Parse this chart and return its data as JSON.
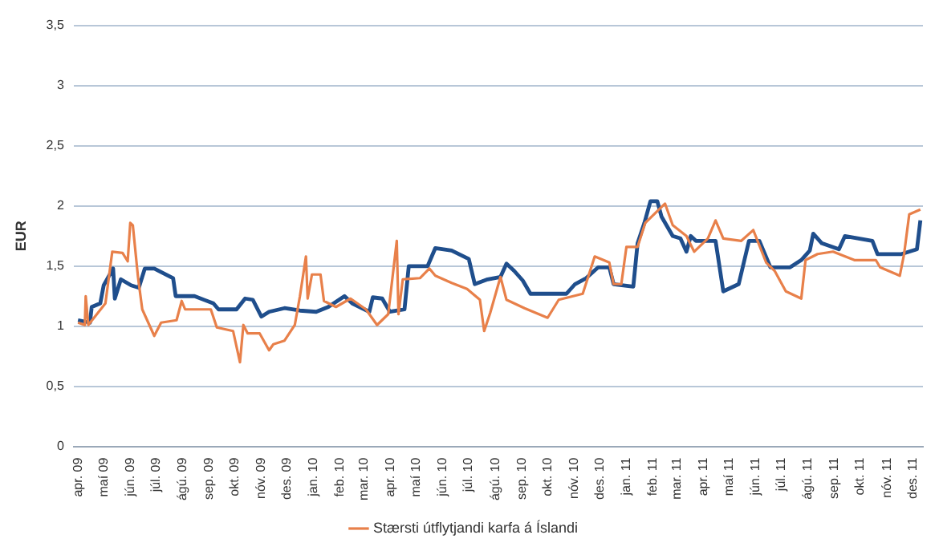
{
  "chart_data": {
    "type": "line",
    "ylabel": "EUR",
    "xlim": [
      "2009-03-27",
      "2011-12-13"
    ],
    "xticks": [
      {
        "value": "2009-04-01",
        "label": "apr. 09"
      },
      {
        "value": "2009-05-01",
        "label": "maí 09"
      },
      {
        "value": "2009-06-01",
        "label": "jún. 09"
      },
      {
        "value": "2009-07-01",
        "label": "júl. 09"
      },
      {
        "value": "2009-08-01",
        "label": "ágú. 09"
      },
      {
        "value": "2009-09-01",
        "label": "sep. 09"
      },
      {
        "value": "2009-10-01",
        "label": "okt. 09"
      },
      {
        "value": "2009-11-01",
        "label": "nóv. 09"
      },
      {
        "value": "2009-12-01",
        "label": "des. 09"
      },
      {
        "value": "2010-01-01",
        "label": "jan. 10"
      },
      {
        "value": "2010-02-01",
        "label": "feb. 10"
      },
      {
        "value": "2010-03-01",
        "label": "mar. 10"
      },
      {
        "value": "2010-04-01",
        "label": "apr. 10"
      },
      {
        "value": "2010-05-01",
        "label": "maí 10"
      },
      {
        "value": "2010-06-01",
        "label": "jún. 10"
      },
      {
        "value": "2010-07-01",
        "label": "júl. 10"
      },
      {
        "value": "2010-08-01",
        "label": "ágú. 10"
      },
      {
        "value": "2010-09-01",
        "label": "sep. 10"
      },
      {
        "value": "2010-10-01",
        "label": "okt. 10"
      },
      {
        "value": "2010-11-01",
        "label": "nóv. 10"
      },
      {
        "value": "2010-12-01",
        "label": "des. 10"
      },
      {
        "value": "2011-01-01",
        "label": "jan. 11"
      },
      {
        "value": "2011-02-01",
        "label": "feb. 11"
      },
      {
        "value": "2011-03-01",
        "label": "mar. 11"
      },
      {
        "value": "2011-04-01",
        "label": "apr. 11"
      },
      {
        "value": "2011-05-01",
        "label": "maí 11"
      },
      {
        "value": "2011-06-01",
        "label": "jún. 11"
      },
      {
        "value": "2011-07-01",
        "label": "júl. 11"
      },
      {
        "value": "2011-08-01",
        "label": "ágú. 11"
      },
      {
        "value": "2011-09-01",
        "label": "sep. 11"
      },
      {
        "value": "2011-10-01",
        "label": "okt. 11"
      },
      {
        "value": "2011-11-01",
        "label": "nóv. 11"
      },
      {
        "value": "2011-12-01",
        "label": "des. 11"
      }
    ],
    "ylim": [
      0,
      3.5
    ],
    "yticks": [
      0,
      {
        "value": 0.5,
        "label": "0,5"
      },
      1,
      {
        "value": 1.5,
        "label": "1,5"
      },
      2,
      {
        "value": 2.5,
        "label": "2,5"
      },
      3,
      {
        "value": 3.5,
        "label": "3,5"
      }
    ],
    "grid": "y",
    "legend": "bottom",
    "marker": "none",
    "line_style": "solid",
    "series": [
      {
        "color": "#1f4e8c",
        "x": [
          "2009-04-01",
          "2009-04-15",
          "2009-04-17",
          "2009-04-27",
          "2009-05-01",
          "2009-05-12",
          "2009-05-14",
          "2009-05-21",
          "2009-06-02",
          "2009-06-11",
          "2009-06-18",
          "2009-06-29",
          "2009-07-21",
          "2009-07-24",
          "2009-08-15",
          "2009-09-06",
          "2009-09-12",
          "2009-10-03",
          "2009-10-13",
          "2009-10-22",
          "2009-11-01",
          "2009-11-10",
          "2009-11-28",
          "2009-12-16",
          "2010-01-04",
          "2010-01-18",
          "2010-02-06",
          "2010-02-15",
          "2010-03-07",
          "2010-03-11",
          "2010-03-22",
          "2010-03-31",
          "2010-04-17",
          "2010-04-22",
          "2010-05-14",
          "2010-05-23",
          "2010-06-11",
          "2010-07-01",
          "2010-07-08",
          "2010-07-23",
          "2010-08-07",
          "2010-08-14",
          "2010-08-23",
          "2010-09-02",
          "2010-09-11",
          "2010-10-23",
          "2010-11-02",
          "2010-11-15",
          "2010-11-29",
          "2010-12-12",
          "2010-12-17",
          "2011-01-09",
          "2011-01-14",
          "2011-01-22",
          "2011-01-29",
          "2011-02-06",
          "2011-02-11",
          "2011-02-24",
          "2011-03-05",
          "2011-03-12",
          "2011-03-17",
          "2011-03-23",
          "2011-04-15",
          "2011-04-24",
          "2011-05-12",
          "2011-05-24",
          "2011-06-05",
          "2011-06-18",
          "2011-07-11",
          "2011-07-24",
          "2011-08-03",
          "2011-08-07",
          "2011-08-17",
          "2011-09-06",
          "2011-09-13",
          "2011-10-15",
          "2011-10-21",
          "2011-11-18",
          "2011-12-06",
          "2011-12-10"
        ],
        "values": [
          1.05,
          1.03,
          1.16,
          1.19,
          1.34,
          1.48,
          1.23,
          1.39,
          1.34,
          1.32,
          1.48,
          1.48,
          1.4,
          1.25,
          1.25,
          1.19,
          1.14,
          1.14,
          1.23,
          1.22,
          1.08,
          1.12,
          1.15,
          1.13,
          1.12,
          1.16,
          1.25,
          1.19,
          1.12,
          1.24,
          1.23,
          1.12,
          1.14,
          1.5,
          1.5,
          1.65,
          1.63,
          1.56,
          1.35,
          1.39,
          1.41,
          1.52,
          1.46,
          1.38,
          1.27,
          1.27,
          1.35,
          1.4,
          1.49,
          1.49,
          1.35,
          1.33,
          1.69,
          1.86,
          2.04,
          2.04,
          1.91,
          1.75,
          1.73,
          1.62,
          1.75,
          1.71,
          1.71,
          1.29,
          1.35,
          1.71,
          1.71,
          1.49,
          1.49,
          1.55,
          1.63,
          1.77,
          1.69,
          1.64,
          1.75,
          1.71,
          1.6,
          1.6,
          1.64,
          1.88
        ]
      },
      {
        "name": "Stærsti útflytjandi karfa á Íslandi",
        "color": "#e8804a",
        "x": [
          "2009-04-01",
          "2009-04-09",
          "2009-04-10",
          "2009-04-13",
          "2009-05-03",
          "2009-05-11",
          "2009-05-23",
          "2009-05-29",
          "2009-06-01",
          "2009-06-04",
          "2009-06-10",
          "2009-06-15",
          "2009-06-29",
          "2009-07-07",
          "2009-07-25",
          "2009-07-31",
          "2009-08-04",
          "2009-09-03",
          "2009-09-10",
          "2009-09-29",
          "2009-10-07",
          "2009-10-11",
          "2009-10-16",
          "2009-10-30",
          "2009-11-10",
          "2009-11-15",
          "2009-11-28",
          "2009-12-10",
          "2009-12-16",
          "2009-12-23",
          "2009-12-25",
          "2009-12-30",
          "2010-01-09",
          "2010-01-13",
          "2010-01-27",
          "2010-02-13",
          "2010-03-03",
          "2010-03-16",
          "2010-03-29",
          "2010-04-08",
          "2010-04-10",
          "2010-04-15",
          "2010-05-05",
          "2010-05-16",
          "2010-05-23",
          "2010-06-11",
          "2010-06-29",
          "2010-07-14",
          "2010-07-19",
          "2010-07-26",
          "2010-08-07",
          "2010-08-14",
          "2010-09-04",
          "2010-10-01",
          "2010-10-14",
          "2010-11-11",
          "2010-11-25",
          "2010-12-12",
          "2010-12-17",
          "2010-12-26",
          "2011-01-01",
          "2011-01-14",
          "2011-01-23",
          "2011-02-15",
          "2011-02-24",
          "2011-03-12",
          "2011-03-21",
          "2011-04-06",
          "2011-04-15",
          "2011-04-24",
          "2011-05-15",
          "2011-05-29",
          "2011-06-13",
          "2011-06-23",
          "2011-07-06",
          "2011-07-24",
          "2011-07-29",
          "2011-08-12",
          "2011-08-30",
          "2011-09-24",
          "2011-10-19",
          "2011-10-24",
          "2011-11-16",
          "2011-11-21",
          "2011-11-27",
          "2011-12-10"
        ],
        "values": [
          1.03,
          1.01,
          1.25,
          1.01,
          1.19,
          1.62,
          1.61,
          1.54,
          1.86,
          1.84,
          1.41,
          1.14,
          0.92,
          1.03,
          1.05,
          1.21,
          1.14,
          1.14,
          0.99,
          0.96,
          0.7,
          1.01,
          0.94,
          0.94,
          0.8,
          0.85,
          0.88,
          1.01,
          1.25,
          1.58,
          1.23,
          1.43,
          1.43,
          1.21,
          1.16,
          1.23,
          1.14,
          1.01,
          1.1,
          1.71,
          1.1,
          1.39,
          1.4,
          1.48,
          1.42,
          1.36,
          1.31,
          1.22,
          0.96,
          1.11,
          1.41,
          1.22,
          1.15,
          1.07,
          1.22,
          1.27,
          1.58,
          1.53,
          1.35,
          1.35,
          1.66,
          1.66,
          1.86,
          2.02,
          1.84,
          1.75,
          1.62,
          1.73,
          1.88,
          1.73,
          1.71,
          1.8,
          1.53,
          1.46,
          1.29,
          1.23,
          1.55,
          1.6,
          1.62,
          1.55,
          1.55,
          1.49,
          1.42,
          1.6,
          1.93,
          1.97
        ]
      }
    ]
  }
}
